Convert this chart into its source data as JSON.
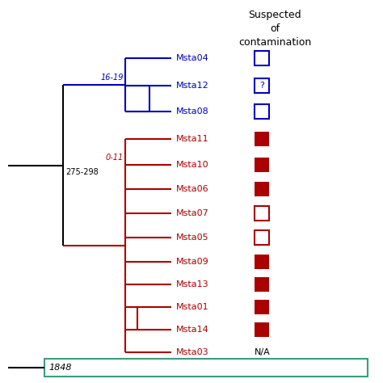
{
  "title": "Suspected\nof\ncontamination",
  "blue_color": "#0000BB",
  "red_color": "#AA0000",
  "green_color": "#3A9E7E",
  "black_color": "#000000",
  "taxa_blue": [
    "Msta04",
    "Msta12",
    "Msta08"
  ],
  "taxa_red": [
    "Msta11",
    "Msta10",
    "Msta06",
    "Msta07",
    "Msta05",
    "Msta09",
    "Msta13",
    "Msta01",
    "Msta14",
    "Msta03"
  ],
  "contamination_markers": {
    "Msta04": "open_blue",
    "Msta12": "question_blue",
    "Msta08": "open_blue",
    "Msta11": "filled_red",
    "Msta10": "filled_red",
    "Msta06": "filled_red",
    "Msta07": "open_red",
    "Msta05": "open_red",
    "Msta09": "filled_red",
    "Msta13": "filled_red",
    "Msta01": "filled_red",
    "Msta14": "filled_red",
    "Msta03": "NA"
  },
  "label_16_19": "16-19",
  "label_275_298": "275-298",
  "label_0_11": "0-11",
  "label_1848": "1848"
}
